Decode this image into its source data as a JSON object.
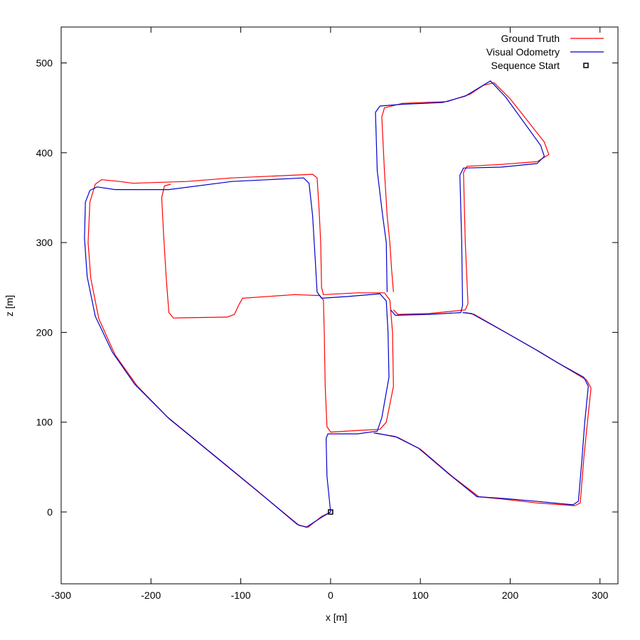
{
  "chart_data": {
    "type": "line",
    "xlabel": "x [m]",
    "ylabel": "z [m]",
    "xlim": [
      -300,
      320
    ],
    "ylim": [
      -80,
      540
    ],
    "xticks": [
      -300,
      -200,
      -100,
      0,
      100,
      200,
      300
    ],
    "yticks": [
      0,
      100,
      200,
      300,
      400,
      500
    ],
    "grid": false,
    "legend_position": "top-right",
    "series": [
      {
        "name": "Ground Truth",
        "color": "#ff0000",
        "style": "line",
        "points": [
          [
            0,
            0
          ],
          [
            -10,
            -5
          ],
          [
            -25,
            -17
          ],
          [
            -35,
            -15
          ],
          [
            -80,
            22
          ],
          [
            -130,
            63
          ],
          [
            -180,
            104
          ],
          [
            -215,
            140
          ],
          [
            -240,
            175
          ],
          [
            -258,
            215
          ],
          [
            -267,
            260
          ],
          [
            -270,
            300
          ],
          [
            -268,
            345
          ],
          [
            -262,
            365
          ],
          [
            -255,
            370
          ],
          [
            -235,
            368
          ],
          [
            -220,
            366
          ],
          [
            -160,
            368
          ],
          [
            -110,
            372
          ],
          [
            -20,
            376
          ],
          [
            -15,
            372
          ],
          [
            -13,
            340
          ],
          [
            -11,
            300
          ],
          [
            -10,
            250
          ],
          [
            -8,
            242
          ],
          [
            30,
            244
          ],
          [
            60,
            244
          ],
          [
            66,
            236
          ],
          [
            69,
            200
          ],
          [
            70,
            140
          ],
          [
            62,
            100
          ],
          [
            55,
            92
          ],
          [
            35,
            91
          ],
          [
            0,
            89
          ],
          [
            -4,
            95
          ],
          [
            -6,
            140
          ],
          [
            -7,
            200
          ],
          [
            -8,
            236
          ],
          [
            -12,
            241
          ],
          [
            -40,
            242
          ],
          [
            -98,
            238
          ],
          [
            -102,
            231
          ],
          [
            -107,
            220
          ],
          [
            -115,
            217
          ],
          [
            -175,
            216
          ],
          [
            -180,
            222
          ],
          [
            -183,
            260
          ],
          [
            -186,
            310
          ],
          [
            -188,
            350
          ],
          [
            -185,
            363
          ],
          [
            -178,
            365
          ]
        ]
      },
      {
        "name": "Visual Odometry",
        "color": "#0000cc",
        "style": "line",
        "points": [
          [
            0,
            0
          ],
          [
            -10,
            -6
          ],
          [
            -27,
            -17
          ],
          [
            -37,
            -14
          ],
          [
            -82,
            24
          ],
          [
            -132,
            65
          ],
          [
            -182,
            106
          ],
          [
            -218,
            142
          ],
          [
            -243,
            178
          ],
          [
            -262,
            218
          ],
          [
            -271,
            262
          ],
          [
            -274,
            305
          ],
          [
            -273,
            345
          ],
          [
            -268,
            358
          ],
          [
            -260,
            362
          ],
          [
            -240,
            359
          ],
          [
            -180,
            359
          ],
          [
            -110,
            368
          ],
          [
            -30,
            372
          ],
          [
            -24,
            366
          ],
          [
            -20,
            330
          ],
          [
            -17,
            280
          ],
          [
            -15,
            245
          ],
          [
            -10,
            238
          ],
          [
            20,
            240
          ],
          [
            55,
            243
          ],
          [
            62,
            235
          ],
          [
            64,
            200
          ],
          [
            65,
            150
          ],
          [
            57,
            105
          ],
          [
            52,
            90
          ],
          [
            30,
            87
          ],
          [
            -3,
            87
          ],
          [
            -5,
            82
          ],
          [
            -4,
            40
          ],
          [
            0,
            0
          ]
        ]
      },
      {
        "name": "Ground Truth",
        "color": "#ff0000",
        "style": "line",
        "points": [
          [
            70,
            225
          ],
          [
            75,
            220
          ],
          [
            110,
            221
          ],
          [
            150,
            225
          ],
          [
            153,
            232
          ],
          [
            150,
            300
          ],
          [
            148,
            378
          ],
          [
            152,
            385
          ],
          [
            190,
            387
          ],
          [
            230,
            390
          ],
          [
            243,
            398
          ],
          [
            238,
            412
          ],
          [
            200,
            460
          ],
          [
            182,
            478
          ],
          [
            170,
            475
          ],
          [
            155,
            465
          ],
          [
            130,
            457
          ],
          [
            80,
            455
          ],
          [
            60,
            450
          ],
          [
            57,
            440
          ],
          [
            60,
            380
          ],
          [
            63,
            330
          ],
          [
            66,
            300
          ],
          [
            68,
            270
          ],
          [
            70,
            245
          ]
        ]
      },
      {
        "name": "Visual Odometry",
        "color": "#0000cc",
        "style": "line",
        "points": [
          [
            67,
            225
          ],
          [
            72,
            219
          ],
          [
            110,
            220
          ],
          [
            145,
            222
          ],
          [
            147,
            230
          ],
          [
            146,
            300
          ],
          [
            144,
            375
          ],
          [
            148,
            383
          ],
          [
            190,
            384
          ],
          [
            230,
            388
          ],
          [
            238,
            396
          ],
          [
            234,
            408
          ],
          [
            195,
            462
          ],
          [
            178,
            480
          ],
          [
            168,
            474
          ],
          [
            150,
            463
          ],
          [
            125,
            456
          ],
          [
            80,
            454
          ],
          [
            55,
            452
          ],
          [
            50,
            445
          ],
          [
            52,
            380
          ],
          [
            58,
            330
          ],
          [
            62,
            300
          ],
          [
            63,
            245
          ]
        ]
      },
      {
        "name": "Ground Truth",
        "color": "#ff0000",
        "style": "line",
        "points": [
          [
            150,
            222
          ],
          [
            160,
            220
          ],
          [
            195,
            200
          ],
          [
            230,
            180
          ],
          [
            255,
            165
          ],
          [
            285,
            147
          ],
          [
            290,
            138
          ],
          [
            286,
            100
          ],
          [
            282,
            60
          ],
          [
            278,
            10
          ],
          [
            272,
            7
          ],
          [
            230,
            10
          ],
          [
            195,
            14
          ],
          [
            165,
            17
          ],
          [
            135,
            40
          ],
          [
            100,
            70
          ],
          [
            75,
            83
          ],
          [
            50,
            88
          ]
        ]
      },
      {
        "name": "Visual Odometry",
        "color": "#0000cc",
        "style": "line",
        "points": [
          [
            147,
            222
          ],
          [
            157,
            221
          ],
          [
            193,
            201
          ],
          [
            228,
            181
          ],
          [
            253,
            166
          ],
          [
            282,
            150
          ],
          [
            287,
            140
          ],
          [
            283,
            100
          ],
          [
            280,
            60
          ],
          [
            276,
            12
          ],
          [
            270,
            8
          ],
          [
            228,
            12
          ],
          [
            193,
            15
          ],
          [
            163,
            17
          ],
          [
            132,
            42
          ],
          [
            98,
            71
          ],
          [
            72,
            84
          ],
          [
            48,
            88
          ]
        ]
      }
    ],
    "sequence_start": {
      "name": "Sequence Start",
      "x": 0,
      "y": 0,
      "color": "#000000"
    }
  },
  "legend": {
    "items": [
      {
        "label": "Ground Truth",
        "color": "#ff0000",
        "marker": "line"
      },
      {
        "label": "Visual Odometry",
        "color": "#0000cc",
        "marker": "line"
      },
      {
        "label": "Sequence Start",
        "color": "#000000",
        "marker": "square"
      }
    ]
  }
}
